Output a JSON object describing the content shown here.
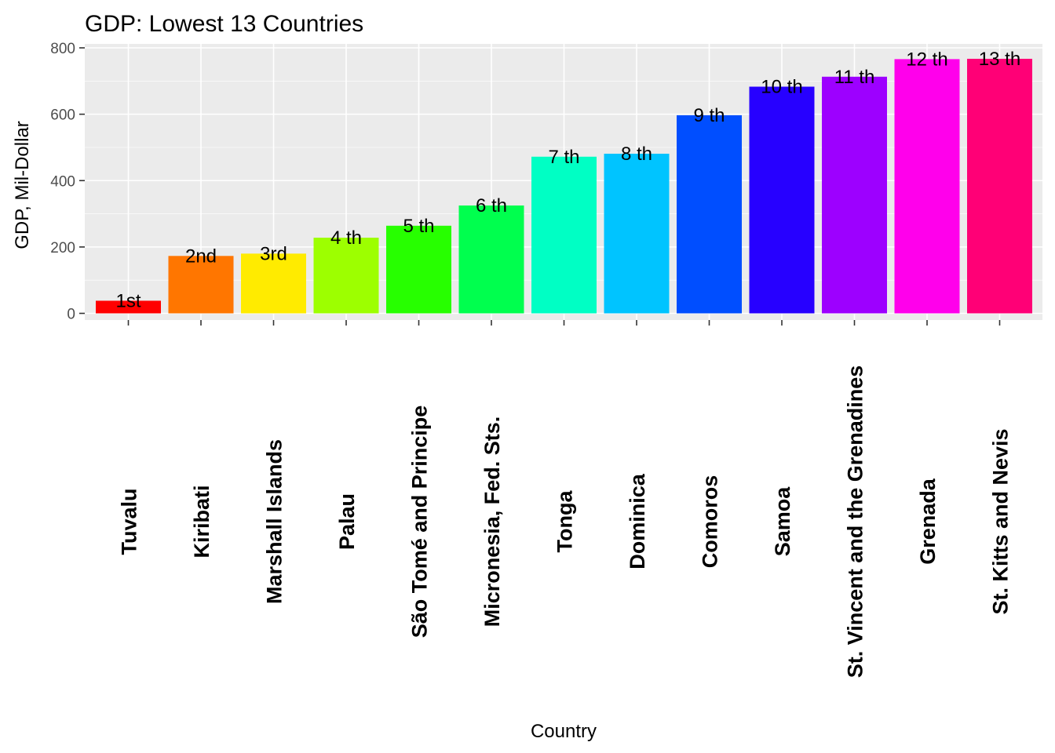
{
  "chart_data": {
    "type": "bar",
    "title": "GDP: Lowest 13 Countries",
    "xlabel": "Country",
    "ylabel": "GDP, Mil-Dollar",
    "ylim": [
      -40,
      800
    ],
    "yticks": [
      0,
      200,
      400,
      600,
      800
    ],
    "grid": true,
    "legend": "none",
    "categories": [
      "Tuvalu",
      "Kiribati",
      "Marshall Islands",
      "Palau",
      "São Tomé and Principe",
      "Micronesia, Fed. Sts.",
      "Tonga",
      "Dominica",
      "Comoros",
      "Samoa",
      "St. Vincent and the Grenadines",
      "Grenada",
      "St. Kitts and Nevis"
    ],
    "values": [
      38,
      173,
      180,
      228,
      264,
      325,
      472,
      481,
      597,
      683,
      713,
      766,
      767
    ],
    "data_labels": [
      "1st",
      "2nd",
      "3rd",
      "4 th",
      "5 th",
      "6 th",
      "7 th",
      "8 th",
      "9 th",
      "10 th",
      "11 th",
      "12 th",
      "13 th"
    ],
    "colors": [
      "#FF0000",
      "#FF7600",
      "#FFEB00",
      "#9DFF00",
      "#27FF00",
      "#00FF4E",
      "#00FFC4",
      "#00C4FF",
      "#004EFF",
      "#2700FF",
      "#9D00FF",
      "#FF00EB",
      "#FF0076"
    ]
  }
}
